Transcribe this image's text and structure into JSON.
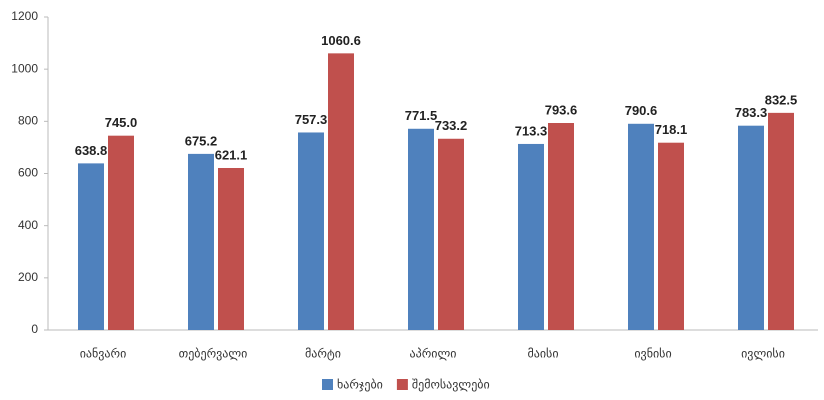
{
  "chart_data": {
    "type": "bar",
    "categories": [
      "იანვარი",
      "თებერვალი",
      "მარტი",
      "აპრილი",
      "მაისი",
      "ივნისი",
      "ივლისი"
    ],
    "series": [
      {
        "name": "ხარჯები",
        "color": "#4f81bd",
        "values": [
          638.8,
          675.2,
          757.3,
          771.5,
          713.3,
          790.6,
          783.3
        ],
        "value_labels": [
          "638.8",
          "675.2",
          "757.3",
          "771.5",
          "713.3",
          "790.6",
          "783.3"
        ]
      },
      {
        "name": "შემოსავლები",
        "color": "#c0504d",
        "values": [
          745.0,
          621.1,
          1060.6,
          733.2,
          793.6,
          718.1,
          832.5
        ],
        "value_labels": [
          "745.0",
          "621.1",
          "1060.6",
          "733.2",
          "793.6",
          "718.1",
          "832.5"
        ]
      }
    ],
    "ylim": [
      0,
      1200
    ],
    "yticks": [
      0,
      200,
      400,
      600,
      800,
      1000,
      1200
    ],
    "grid": false,
    "legend": "bottom"
  }
}
